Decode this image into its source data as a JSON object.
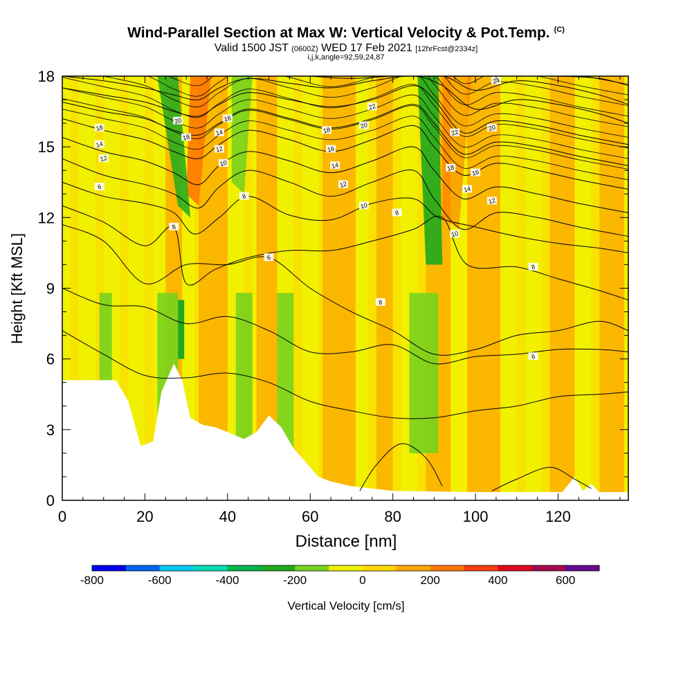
{
  "header": {
    "title": "Wind-Parallel Section at Max W: Vertical Velocity & Pot.Temp.",
    "copyright": "(C)",
    "valid_prefix": "Valid 1500 JST",
    "valid_utc": "(0600Z)",
    "valid_date": "WED 17 Feb 2021",
    "forecast": "[12hrFcst@2334z]",
    "indices": "i,j,k,angle=92,59,24,87"
  },
  "chart_data": {
    "type": "heatmap",
    "xlabel": "Distance [nm]",
    "ylabel": "Height [Kft MSL]",
    "xlim": [
      0,
      137
    ],
    "ylim": [
      0,
      18
    ],
    "x_ticks": [
      "0",
      "20",
      "40",
      "60",
      "80",
      "100",
      "120"
    ],
    "y_ticks": [
      "0",
      "3",
      "6",
      "9",
      "12",
      "15",
      "18"
    ],
    "colorbar": {
      "label": "Vertical Velocity [cm/s]",
      "range": [
        -800,
        700
      ],
      "ticks": [
        "-800",
        "-600",
        "-400",
        "-200",
        "0",
        "200",
        "400",
        "600"
      ],
      "colors": [
        "#0000f0",
        "#0064f0",
        "#00c8f0",
        "#00dcb4",
        "#00b450",
        "#1eaa1e",
        "#78d21e",
        "#f0f000",
        "#ffd700",
        "#ffa500",
        "#ff7800",
        "#ff3c14",
        "#dc0a1e",
        "#a00a50",
        "#640a8c"
      ]
    },
    "terrain_kft": [
      [
        0,
        5.1
      ],
      [
        13,
        5.1
      ],
      [
        16,
        4.2
      ],
      [
        19,
        2.3
      ],
      [
        22,
        2.5
      ],
      [
        24,
        4.6
      ],
      [
        27,
        5.8
      ],
      [
        29,
        5.1
      ],
      [
        31,
        3.5
      ],
      [
        34,
        3.2
      ],
      [
        37,
        3.1
      ],
      [
        40,
        2.9
      ],
      [
        44,
        2.6
      ],
      [
        47,
        2.9
      ],
      [
        50,
        3.6
      ],
      [
        53,
        3.1
      ],
      [
        56,
        2.2
      ],
      [
        59,
        1.6
      ],
      [
        62,
        1.0
      ],
      [
        65,
        0.8
      ],
      [
        70,
        0.6
      ],
      [
        80,
        0.4
      ],
      [
        100,
        0.35
      ],
      [
        121,
        0.35
      ],
      [
        124,
        1.0
      ],
      [
        126,
        0.4
      ],
      [
        128,
        0.7
      ],
      [
        130,
        0.35
      ],
      [
        137,
        0.35
      ]
    ],
    "updraft_bands_nm": [
      [
        25,
        29
      ],
      [
        33,
        40
      ],
      [
        47,
        52
      ],
      [
        63,
        71
      ],
      [
        76,
        80
      ],
      [
        88,
        94
      ],
      [
        98,
        106
      ],
      [
        118,
        124
      ],
      [
        130,
        136
      ]
    ],
    "downdraft_bands_nm": [
      [
        9,
        12
      ],
      [
        23,
        28
      ],
      [
        42,
        46
      ],
      [
        52,
        56
      ],
      [
        84,
        91
      ]
    ],
    "max_downdraft": {
      "x_nm": 88,
      "value_cm_s": -200
    },
    "max_updraft": {
      "x_nm": 35,
      "value_cm_s": 300
    },
    "isentropes": [
      {
        "label": "6",
        "points": [
          [
            0,
            7.2
          ],
          [
            10,
            6.2
          ],
          [
            20,
            5.3
          ],
          [
            30,
            5.2
          ],
          [
            40,
            5.4
          ],
          [
            50,
            5.0
          ],
          [
            60,
            4.2
          ],
          [
            70,
            3.8
          ],
          [
            80,
            3.5
          ],
          [
            90,
            3.5
          ],
          [
            100,
            3.8
          ],
          [
            110,
            4.0
          ],
          [
            120,
            4.4
          ],
          [
            130,
            4.5
          ],
          [
            137,
            4.6
          ]
        ]
      },
      {
        "label": "6",
        "label_pos": [
          114,
          6.1
        ],
        "points": [
          [
            0,
            9.0
          ],
          [
            10,
            8.3
          ],
          [
            20,
            8.2
          ],
          [
            30,
            7.5
          ],
          [
            40,
            7.8
          ],
          [
            50,
            7.2
          ],
          [
            60,
            6.3
          ],
          [
            70,
            6.3
          ],
          [
            80,
            6.6
          ],
          [
            90,
            5.8
          ],
          [
            100,
            6.1
          ],
          [
            110,
            6.2
          ],
          [
            120,
            6.4
          ],
          [
            130,
            6.4
          ],
          [
            137,
            6.3
          ]
        ]
      },
      {
        "label": "6",
        "label_pos": [
          49,
          10.3
        ],
        "points": [
          [
            0,
            11.7
          ],
          [
            10,
            11.0
          ],
          [
            20,
            9.2
          ],
          [
            30,
            10.0
          ],
          [
            40,
            10.0
          ],
          [
            50,
            10.3
          ],
          [
            60,
            9.0
          ],
          [
            70,
            8.0
          ],
          [
            80,
            7.2
          ],
          [
            90,
            6.2
          ],
          [
            100,
            6.4
          ],
          [
            110,
            7.0
          ],
          [
            120,
            7.2
          ],
          [
            130,
            7.6
          ],
          [
            137,
            7.2
          ]
        ]
      },
      {
        "label": "8",
        "label_pos": [
          25,
          11.6
        ],
        "points": [
          [
            0,
            12.5
          ],
          [
            10,
            11.8
          ],
          [
            20,
            10.8
          ],
          [
            27,
            11.6
          ],
          [
            30,
            9.2
          ],
          [
            37,
            9.8
          ],
          [
            45,
            10.3
          ],
          [
            55,
            10.6
          ],
          [
            65,
            10.6
          ],
          [
            75,
            11.0
          ],
          [
            85,
            11.5
          ],
          [
            92,
            12.0
          ],
          [
            98,
            10.0
          ],
          [
            110,
            9.9
          ],
          [
            120,
            9.4
          ],
          [
            130,
            8.9
          ],
          [
            137,
            8.5
          ]
        ]
      },
      {
        "label": "8",
        "label_pos": [
          77,
          8.4
        ],
        "points": [
          [
            0,
            13.5
          ],
          [
            10,
            12.9
          ],
          [
            20,
            12.6
          ],
          [
            27,
            12.2
          ],
          [
            32,
            11.3
          ],
          [
            38,
            12.0
          ],
          [
            45,
            12.9
          ],
          [
            55,
            12.1
          ],
          [
            65,
            11.9
          ],
          [
            75,
            12.6
          ],
          [
            85,
            12.8
          ],
          [
            91,
            12.0
          ],
          [
            100,
            11.6
          ],
          [
            110,
            11.2
          ],
          [
            120,
            10.9
          ],
          [
            130,
            10.7
          ],
          [
            137,
            10.5
          ]
        ]
      },
      {
        "label": "10",
        "label_pos": [
          95,
          11.3
        ],
        "points": [
          [
            0,
            14.5
          ],
          [
            10,
            13.8
          ],
          [
            20,
            13.4
          ],
          [
            27,
            13.0
          ],
          [
            33,
            12.4
          ],
          [
            38,
            13.3
          ],
          [
            45,
            14.0
          ],
          [
            55,
            13.5
          ],
          [
            65,
            12.9
          ],
          [
            75,
            13.5
          ],
          [
            85,
            14.0
          ],
          [
            90,
            12.8
          ],
          [
            97,
            11.5
          ],
          [
            105,
            12.2
          ],
          [
            115,
            12.0
          ],
          [
            125,
            11.6
          ],
          [
            137,
            11.2
          ]
        ]
      },
      {
        "label": "12",
        "label_pos": [
          112,
          12.7
        ],
        "points": [
          [
            0,
            15.4
          ],
          [
            10,
            14.8
          ],
          [
            20,
            14.4
          ],
          [
            27,
            13.9
          ],
          [
            33,
            13.4
          ],
          [
            38,
            14.2
          ],
          [
            45,
            14.8
          ],
          [
            55,
            14.4
          ],
          [
            65,
            13.9
          ],
          [
            75,
            14.4
          ],
          [
            85,
            15.0
          ],
          [
            90,
            14.0
          ],
          [
            97,
            12.8
          ],
          [
            105,
            13.3
          ],
          [
            115,
            13.0
          ],
          [
            125,
            12.6
          ],
          [
            137,
            12.2
          ]
        ]
      },
      {
        "label": "14",
        "label_pos": [
          63,
          14.5
        ],
        "points": [
          [
            0,
            16.2
          ],
          [
            10,
            15.7
          ],
          [
            20,
            15.3
          ],
          [
            27,
            14.8
          ],
          [
            33,
            14.5
          ],
          [
            38,
            15.1
          ],
          [
            45,
            15.7
          ],
          [
            55,
            15.3
          ],
          [
            65,
            14.8
          ],
          [
            75,
            15.3
          ],
          [
            85,
            15.9
          ],
          [
            90,
            15.0
          ],
          [
            97,
            13.8
          ],
          [
            105,
            14.3
          ],
          [
            115,
            14.0
          ],
          [
            125,
            13.6
          ],
          [
            137,
            13.2
          ]
        ]
      },
      {
        "label": "16",
        "label_pos": [
          65,
          15.3
        ],
        "points": [
          [
            0,
            16.9
          ],
          [
            10,
            16.5
          ],
          [
            20,
            16.2
          ],
          [
            27,
            15.7
          ],
          [
            33,
            15.5
          ],
          [
            38,
            16.0
          ],
          [
            45,
            16.6
          ],
          [
            55,
            16.2
          ],
          [
            65,
            15.8
          ],
          [
            75,
            16.2
          ],
          [
            85,
            16.8
          ],
          [
            90,
            16.0
          ],
          [
            97,
            14.7
          ],
          [
            105,
            15.2
          ],
          [
            115,
            15.0
          ],
          [
            125,
            14.6
          ],
          [
            137,
            14.2
          ]
        ]
      },
      {
        "label": "18",
        "label_pos": [
          30,
          15.4
        ],
        "points": [
          [
            0,
            17.5
          ],
          [
            10,
            17.2
          ],
          [
            20,
            16.9
          ],
          [
            27,
            16.5
          ],
          [
            33,
            16.3
          ],
          [
            38,
            16.8
          ],
          [
            45,
            17.3
          ],
          [
            55,
            17.0
          ],
          [
            65,
            16.7
          ],
          [
            75,
            17.0
          ],
          [
            85,
            17.6
          ],
          [
            90,
            17.0
          ],
          [
            97,
            15.6
          ],
          [
            105,
            16.1
          ],
          [
            115,
            15.9
          ],
          [
            125,
            15.5
          ],
          [
            137,
            15.1
          ]
        ]
      },
      {
        "label": "20",
        "label_pos": [
          73,
          15.9
        ],
        "points": [
          [
            0,
            18.0
          ],
          [
            10,
            17.8
          ],
          [
            20,
            17.5
          ],
          [
            27,
            17.2
          ],
          [
            33,
            17.0
          ],
          [
            38,
            17.5
          ],
          [
            45,
            17.9
          ],
          [
            55,
            17.7
          ],
          [
            65,
            17.5
          ],
          [
            75,
            17.8
          ],
          [
            85,
            18.0
          ],
          [
            92,
            17.6
          ],
          [
            100,
            16.6
          ],
          [
            110,
            17.0
          ],
          [
            120,
            16.8
          ],
          [
            130,
            16.4
          ],
          [
            137,
            16.0
          ]
        ]
      },
      {
        "label": "22",
        "label_pos": [
          95,
          15.9
        ],
        "points": [
          [
            60,
            18.0
          ],
          [
            70,
            17.9
          ],
          [
            80,
            18.0
          ],
          [
            92,
            18.0
          ],
          [
            100,
            17.4
          ],
          [
            110,
            17.8
          ],
          [
            120,
            17.6
          ],
          [
            130,
            17.2
          ],
          [
            137,
            16.8
          ]
        ]
      },
      {
        "label": "24",
        "label_pos": [
          105,
          17.8
        ],
        "points": [
          [
            95,
            18.0
          ],
          [
            103,
            18.0
          ],
          [
            110,
            18.0
          ],
          [
            120,
            18.0
          ],
          [
            130,
            17.9
          ],
          [
            137,
            17.6
          ]
        ]
      }
    ],
    "contour_labels": [
      {
        "text": "18",
        "x": 9,
        "y": 15.8
      },
      {
        "text": "14",
        "x": 9,
        "y": 15.1
      },
      {
        "text": "12",
        "x": 10,
        "y": 14.5
      },
      {
        "text": "6",
        "x": 9,
        "y": 13.3
      },
      {
        "text": "20",
        "x": 28,
        "y": 16.1
      },
      {
        "text": "18",
        "x": 30,
        "y": 15.4
      },
      {
        "text": "16",
        "x": 40,
        "y": 16.2
      },
      {
        "text": "14",
        "x": 38,
        "y": 15.6
      },
      {
        "text": "12",
        "x": 38,
        "y": 14.9
      },
      {
        "text": "10",
        "x": 39,
        "y": 14.3
      },
      {
        "text": "8",
        "x": 44,
        "y": 12.9
      },
      {
        "text": "8",
        "x": 27,
        "y": 11.6
      },
      {
        "text": "6",
        "x": 50,
        "y": 10.3
      },
      {
        "text": "18",
        "x": 64,
        "y": 15.7
      },
      {
        "text": "16",
        "x": 65,
        "y": 14.9
      },
      {
        "text": "14",
        "x": 66,
        "y": 14.2
      },
      {
        "text": "12",
        "x": 68,
        "y": 13.4
      },
      {
        "text": "10",
        "x": 73,
        "y": 12.5
      },
      {
        "text": "8",
        "x": 81,
        "y": 12.2
      },
      {
        "text": "22",
        "x": 75,
        "y": 16.7
      },
      {
        "text": "20",
        "x": 73,
        "y": 15.9
      },
      {
        "text": "8",
        "x": 77,
        "y": 8.4
      },
      {
        "text": "22",
        "x": 95,
        "y": 15.6
      },
      {
        "text": "20",
        "x": 104,
        "y": 15.8
      },
      {
        "text": "18",
        "x": 94,
        "y": 14.1
      },
      {
        "text": "16",
        "x": 100,
        "y": 13.9
      },
      {
        "text": "14",
        "x": 98,
        "y": 13.2
      },
      {
        "text": "12",
        "x": 104,
        "y": 12.7
      },
      {
        "text": "10",
        "x": 95,
        "y": 11.3
      },
      {
        "text": "8",
        "x": 114,
        "y": 9.9
      },
      {
        "text": "6",
        "x": 114,
        "y": 6.1
      },
      {
        "text": "24",
        "x": 105,
        "y": 17.8
      }
    ]
  }
}
